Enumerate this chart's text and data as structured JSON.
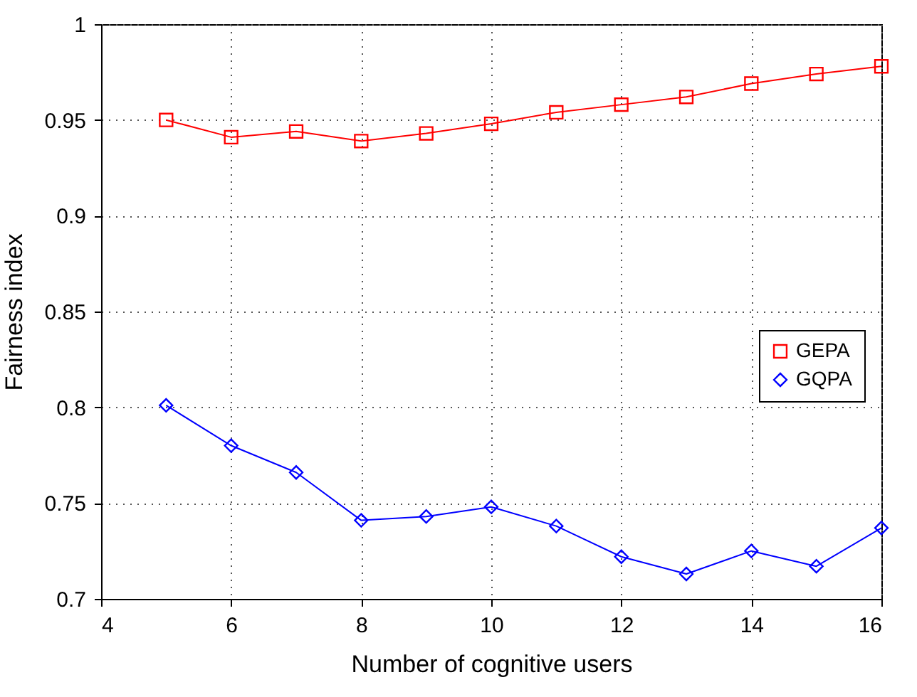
{
  "chart_data": {
    "type": "line",
    "xlabel": "Number of cognitive users",
    "ylabel": "Fairness index",
    "x": [
      5,
      6,
      7,
      8,
      9,
      10,
      11,
      12,
      13,
      14,
      15,
      16
    ],
    "series": [
      {
        "name": "GEPA",
        "color": "#ff0000",
        "marker": "square",
        "values": [
          0.95,
          0.941,
          0.944,
          0.939,
          0.943,
          0.948,
          0.954,
          0.958,
          0.962,
          0.969,
          0.974,
          0.978
        ]
      },
      {
        "name": "GQPA",
        "color": "#0000ff",
        "marker": "diamond",
        "values": [
          0.801,
          0.78,
          0.766,
          0.741,
          0.743,
          0.748,
          0.738,
          0.722,
          0.713,
          0.725,
          0.717,
          0.737
        ]
      }
    ],
    "xlim": [
      4,
      16
    ],
    "xticks": [
      4,
      6,
      8,
      10,
      12,
      14,
      16
    ],
    "ylim": [
      0.7,
      1
    ],
    "yticks": [
      0.7,
      0.75,
      0.8,
      0.85,
      0.9,
      0.95,
      1
    ],
    "grid": true,
    "legend": "right",
    "line_style": "solid"
  }
}
